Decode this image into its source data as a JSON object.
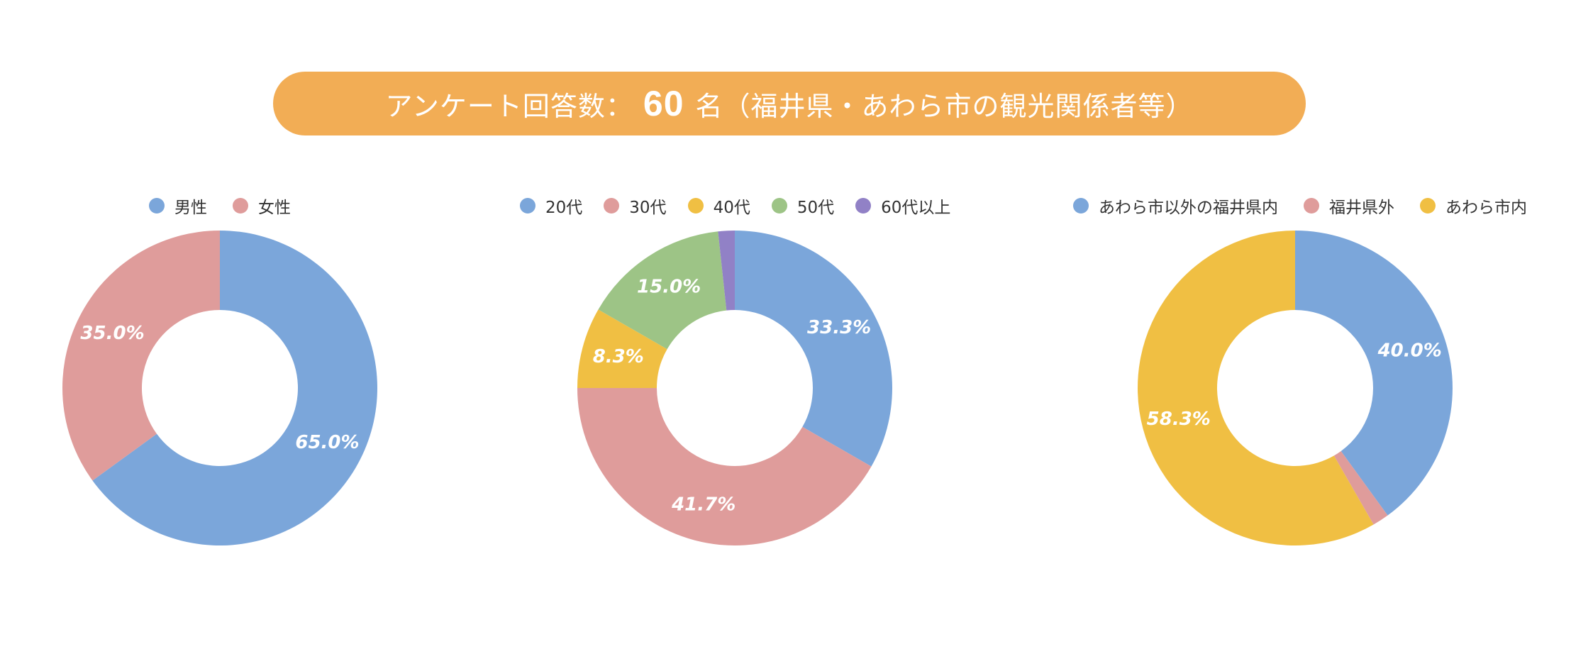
{
  "header": {
    "prefix": "アンケート回答数：",
    "count": "60",
    "suffix": "名（福井県・あわら市の観光関係者等）",
    "color": "#f2ad55"
  },
  "chart_data": [
    {
      "type": "pie",
      "donut": true,
      "title": "",
      "legend_position": "top",
      "categories": [
        "男性",
        "女性"
      ],
      "values": [
        65.0,
        35.0
      ],
      "labels": [
        "65.0%",
        "35.0%"
      ],
      "colors": [
        "#7ba6da",
        "#df9c9b"
      ],
      "direction": "clockwise",
      "start": "12 o'clock"
    },
    {
      "type": "pie",
      "donut": true,
      "title": "",
      "legend_position": "top",
      "categories": [
        "20代",
        "30代",
        "40代",
        "50代",
        "60代以上"
      ],
      "values": [
        33.3,
        41.7,
        8.3,
        15.0,
        1.7
      ],
      "labels": [
        "33.3%",
        "41.7%",
        "8.3%",
        "15.0%",
        ""
      ],
      "colors": [
        "#7ba6da",
        "#df9c9b",
        "#f0bf43",
        "#9dc486",
        "#9181c6"
      ],
      "direction": "clockwise",
      "start": "12 o'clock"
    },
    {
      "type": "pie",
      "donut": true,
      "title": "",
      "legend_position": "top",
      "categories": [
        "あわら市以外の福井県内",
        "福井県外",
        "あわら市内"
      ],
      "values": [
        40.0,
        1.7,
        58.3
      ],
      "labels": [
        "40.0%",
        "",
        "58.3%"
      ],
      "colors": [
        "#7ba6da",
        "#df9c9b",
        "#f0bf43"
      ],
      "direction": "clockwise",
      "start": "12 o'clock"
    }
  ]
}
